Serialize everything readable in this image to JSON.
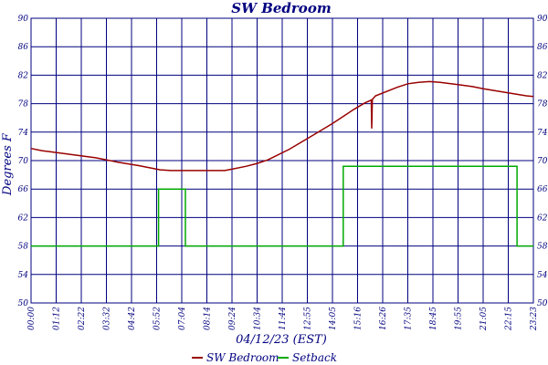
{
  "chart_data": {
    "type": "line",
    "title": "SW Bedroom",
    "xlabel": "04/12/23 (EST)",
    "ylabel": "Degrees F",
    "ylim": [
      50,
      90
    ],
    "yticks": [
      "50",
      "54",
      "58",
      "62",
      "66",
      "70",
      "74",
      "78",
      "82",
      "86",
      "90"
    ],
    "xticks": [
      "00:00",
      "01:12",
      "02:22",
      "03:32",
      "04:42",
      "05:52",
      "07:04",
      "08:14",
      "09:24",
      "10:34",
      "11:44",
      "12:55",
      "14:05",
      "15:16",
      "16:26",
      "17:35",
      "18:45",
      "19:55",
      "21:05",
      "22:15",
      "23:23"
    ],
    "grid": true,
    "legend_position": "bottom",
    "colors": {
      "sw_bedroom": "#990000",
      "setback": "#00aa00",
      "axis": "#00007f"
    },
    "series": [
      {
        "name": "SW Bedroom",
        "x": [
          0,
          0.5,
          1,
          2,
          3,
          4,
          5,
          6,
          6.5,
          7,
          8,
          9,
          10,
          10.5,
          11,
          12,
          12.5,
          13,
          14,
          15,
          15.5,
          15.8,
          15.82,
          15.85,
          16,
          17,
          17.5,
          18,
          18.5,
          19,
          19.5,
          20,
          20.5,
          21,
          22,
          23,
          23.33
        ],
        "values": [
          71.7,
          71.4,
          71.2,
          70.8,
          70.4,
          69.8,
          69.3,
          68.7,
          68.6,
          68.6,
          68.6,
          68.6,
          69.2,
          69.6,
          70.1,
          71.6,
          72.5,
          73.4,
          75.2,
          77.2,
          78.1,
          78.5,
          74.5,
          78.6,
          79.1,
          80.3,
          80.8,
          81.0,
          81.1,
          81.0,
          80.8,
          80.6,
          80.4,
          80.1,
          79.6,
          79.1,
          79.0
        ]
      },
      {
        "name": "Setback",
        "x": [
          0,
          5.92,
          5.92,
          7.17,
          7.17,
          14.5,
          14.5,
          22.57,
          22.57,
          23.33
        ],
        "values": [
          58,
          58,
          66,
          66,
          58,
          58,
          69.2,
          69.2,
          58,
          58
        ]
      }
    ]
  }
}
